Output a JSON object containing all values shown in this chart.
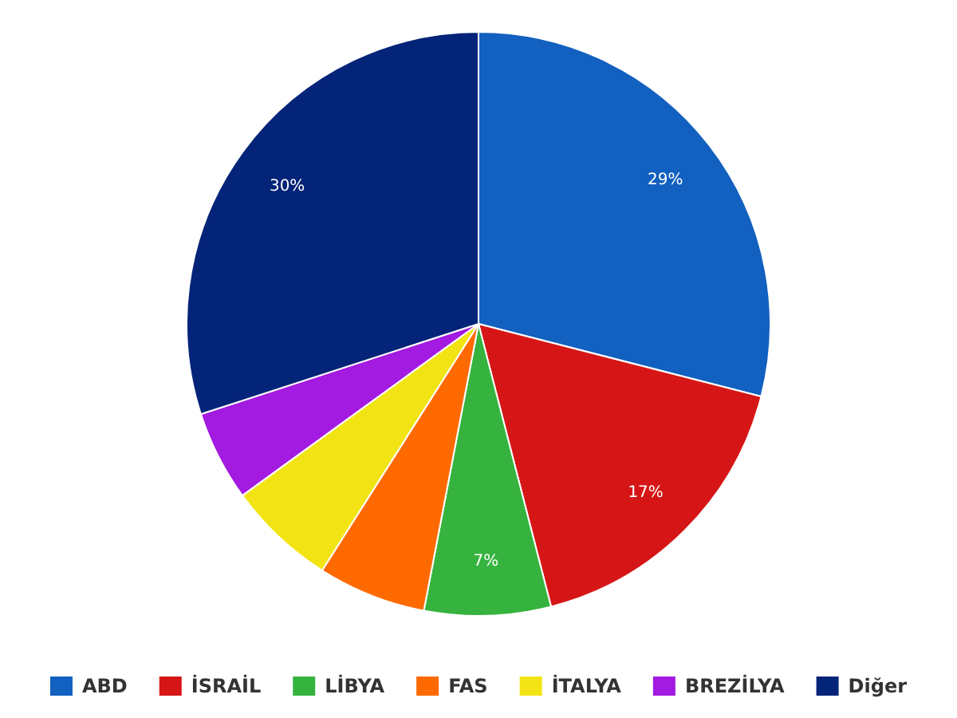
{
  "chart_data": {
    "type": "pie",
    "categories": [
      "ABD",
      "İSRAİL",
      "LİBYA",
      "FAS",
      "İTALYA",
      "BREZİLYA",
      "Diğer"
    ],
    "values": [
      29,
      17,
      7,
      6,
      6,
      5,
      30
    ],
    "colors": [
      "#1260c0",
      "#d61616",
      "#36b33e",
      "#ff6a00",
      "#f2e414",
      "#a31ae0",
      "#032478"
    ],
    "value_labels": [
      "29%",
      "17%",
      "7%",
      null,
      null,
      null,
      "30%"
    ],
    "legend": "bottom"
  }
}
